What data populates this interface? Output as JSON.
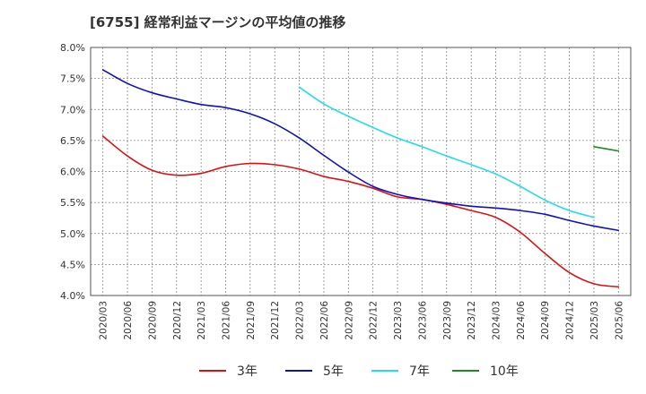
{
  "title": "[6755]  経常利益マージンの平均値の推移",
  "chart_data": {
    "type": "line",
    "title": "[6755]  経常利益マージンの平均値の推移",
    "xlabel": "",
    "ylabel": "",
    "ylim": [
      4.0,
      8.0
    ],
    "grid": true,
    "legend_position": "bottom",
    "y_ticks": [
      {
        "v": 4.0,
        "label": "4.0%"
      },
      {
        "v": 4.5,
        "label": "4.5%"
      },
      {
        "v": 5.0,
        "label": "5.0%"
      },
      {
        "v": 5.5,
        "label": "5.5%"
      },
      {
        "v": 6.0,
        "label": "6.0%"
      },
      {
        "v": 6.5,
        "label": "6.5%"
      },
      {
        "v": 7.0,
        "label": "7.0%"
      },
      {
        "v": 7.5,
        "label": "7.5%"
      },
      {
        "v": 8.0,
        "label": "8.0%"
      }
    ],
    "x_ticks": [
      "2020/03",
      "2020/06",
      "2020/09",
      "2020/12",
      "2021/03",
      "2021/06",
      "2021/09",
      "2021/12",
      "2022/03",
      "2022/06",
      "2022/09",
      "2022/12",
      "2023/03",
      "2023/06",
      "2023/09",
      "2023/12",
      "2024/03",
      "2024/06",
      "2024/09",
      "2024/12",
      "2025/03",
      "2025/06"
    ],
    "series": [
      {
        "name": "3年",
        "color": "#dd1111",
        "start_index": 0,
        "values": [
          6.57,
          6.25,
          6.02,
          5.94,
          5.97,
          6.08,
          6.13,
          6.11,
          6.04,
          5.92,
          5.84,
          5.73,
          5.59,
          5.55,
          5.47,
          5.37,
          5.26,
          5.02,
          4.68,
          4.37,
          4.19,
          4.14
        ]
      },
      {
        "name": "5年",
        "color": "#1111bb",
        "start_index": 0,
        "values": [
          7.64,
          7.42,
          7.27,
          7.17,
          7.08,
          7.03,
          6.93,
          6.77,
          6.54,
          6.26,
          5.99,
          5.76,
          5.63,
          5.55,
          5.49,
          5.44,
          5.41,
          5.37,
          5.31,
          5.21,
          5.12,
          5.05
        ]
      },
      {
        "name": "7年",
        "color": "#22ddee",
        "start_index": 8,
        "values": [
          7.36,
          7.09,
          6.89,
          6.71,
          6.54,
          6.4,
          6.25,
          6.11,
          5.96,
          5.76,
          5.54,
          5.37,
          5.26
        ]
      },
      {
        "name": "10年",
        "color": "#228822",
        "start_index": 20,
        "values": [
          6.4,
          6.33
        ]
      }
    ]
  }
}
